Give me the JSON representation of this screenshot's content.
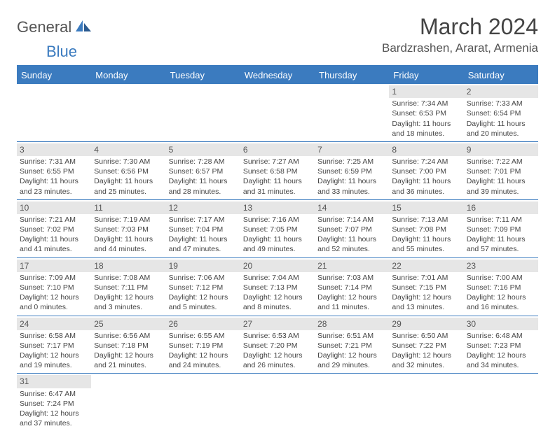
{
  "logo": {
    "word1": "General",
    "word2": "Blue"
  },
  "title": "March 2024",
  "location": "Bardzrashen, Ararat, Armenia",
  "colors": {
    "accent": "#3b7bbf",
    "dayHeaderBg": "#e6e6e6",
    "text": "#444444",
    "background": "#ffffff"
  },
  "dayNames": [
    "Sunday",
    "Monday",
    "Tuesday",
    "Wednesday",
    "Thursday",
    "Friday",
    "Saturday"
  ],
  "weeks": [
    [
      null,
      null,
      null,
      null,
      null,
      {
        "n": "1",
        "sr": "7:34 AM",
        "ss": "6:53 PM",
        "dl": "11 hours and 18 minutes."
      },
      {
        "n": "2",
        "sr": "7:33 AM",
        "ss": "6:54 PM",
        "dl": "11 hours and 20 minutes."
      }
    ],
    [
      {
        "n": "3",
        "sr": "7:31 AM",
        "ss": "6:55 PM",
        "dl": "11 hours and 23 minutes."
      },
      {
        "n": "4",
        "sr": "7:30 AM",
        "ss": "6:56 PM",
        "dl": "11 hours and 25 minutes."
      },
      {
        "n": "5",
        "sr": "7:28 AM",
        "ss": "6:57 PM",
        "dl": "11 hours and 28 minutes."
      },
      {
        "n": "6",
        "sr": "7:27 AM",
        "ss": "6:58 PM",
        "dl": "11 hours and 31 minutes."
      },
      {
        "n": "7",
        "sr": "7:25 AM",
        "ss": "6:59 PM",
        "dl": "11 hours and 33 minutes."
      },
      {
        "n": "8",
        "sr": "7:24 AM",
        "ss": "7:00 PM",
        "dl": "11 hours and 36 minutes."
      },
      {
        "n": "9",
        "sr": "7:22 AM",
        "ss": "7:01 PM",
        "dl": "11 hours and 39 minutes."
      }
    ],
    [
      {
        "n": "10",
        "sr": "7:21 AM",
        "ss": "7:02 PM",
        "dl": "11 hours and 41 minutes."
      },
      {
        "n": "11",
        "sr": "7:19 AM",
        "ss": "7:03 PM",
        "dl": "11 hours and 44 minutes."
      },
      {
        "n": "12",
        "sr": "7:17 AM",
        "ss": "7:04 PM",
        "dl": "11 hours and 47 minutes."
      },
      {
        "n": "13",
        "sr": "7:16 AM",
        "ss": "7:05 PM",
        "dl": "11 hours and 49 minutes."
      },
      {
        "n": "14",
        "sr": "7:14 AM",
        "ss": "7:07 PM",
        "dl": "11 hours and 52 minutes."
      },
      {
        "n": "15",
        "sr": "7:13 AM",
        "ss": "7:08 PM",
        "dl": "11 hours and 55 minutes."
      },
      {
        "n": "16",
        "sr": "7:11 AM",
        "ss": "7:09 PM",
        "dl": "11 hours and 57 minutes."
      }
    ],
    [
      {
        "n": "17",
        "sr": "7:09 AM",
        "ss": "7:10 PM",
        "dl": "12 hours and 0 minutes."
      },
      {
        "n": "18",
        "sr": "7:08 AM",
        "ss": "7:11 PM",
        "dl": "12 hours and 3 minutes."
      },
      {
        "n": "19",
        "sr": "7:06 AM",
        "ss": "7:12 PM",
        "dl": "12 hours and 5 minutes."
      },
      {
        "n": "20",
        "sr": "7:04 AM",
        "ss": "7:13 PM",
        "dl": "12 hours and 8 minutes."
      },
      {
        "n": "21",
        "sr": "7:03 AM",
        "ss": "7:14 PM",
        "dl": "12 hours and 11 minutes."
      },
      {
        "n": "22",
        "sr": "7:01 AM",
        "ss": "7:15 PM",
        "dl": "12 hours and 13 minutes."
      },
      {
        "n": "23",
        "sr": "7:00 AM",
        "ss": "7:16 PM",
        "dl": "12 hours and 16 minutes."
      }
    ],
    [
      {
        "n": "24",
        "sr": "6:58 AM",
        "ss": "7:17 PM",
        "dl": "12 hours and 19 minutes."
      },
      {
        "n": "25",
        "sr": "6:56 AM",
        "ss": "7:18 PM",
        "dl": "12 hours and 21 minutes."
      },
      {
        "n": "26",
        "sr": "6:55 AM",
        "ss": "7:19 PM",
        "dl": "12 hours and 24 minutes."
      },
      {
        "n": "27",
        "sr": "6:53 AM",
        "ss": "7:20 PM",
        "dl": "12 hours and 26 minutes."
      },
      {
        "n": "28",
        "sr": "6:51 AM",
        "ss": "7:21 PM",
        "dl": "12 hours and 29 minutes."
      },
      {
        "n": "29",
        "sr": "6:50 AM",
        "ss": "7:22 PM",
        "dl": "12 hours and 32 minutes."
      },
      {
        "n": "30",
        "sr": "6:48 AM",
        "ss": "7:23 PM",
        "dl": "12 hours and 34 minutes."
      }
    ],
    [
      {
        "n": "31",
        "sr": "6:47 AM",
        "ss": "7:24 PM",
        "dl": "12 hours and 37 minutes."
      },
      null,
      null,
      null,
      null,
      null,
      null
    ]
  ],
  "labels": {
    "sunrise": "Sunrise:",
    "sunset": "Sunset:",
    "daylight": "Daylight:"
  }
}
